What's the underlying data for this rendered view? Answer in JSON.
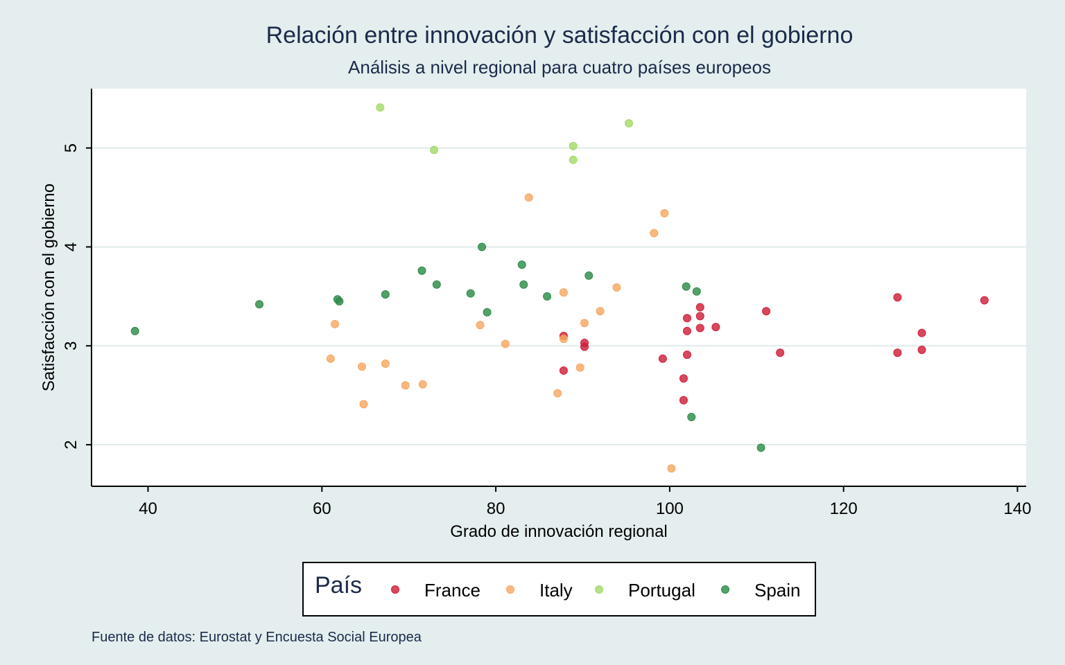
{
  "chart_data": {
    "type": "scatter",
    "title": "Relación entre innovación y satisfacción con el gobierno",
    "subtitle": "Análisis a nivel regional para cuatro países europeos",
    "xlabel": "Grado de innovación regional",
    "ylabel": "Satisfacción con el gobierno",
    "xlim": [
      33.5,
      141
    ],
    "ylim": [
      1.58,
      5.6
    ],
    "xticks": [
      40,
      60,
      80,
      100,
      120,
      140
    ],
    "yticks": [
      2,
      3,
      4,
      5
    ],
    "grid": "horizontal",
    "legend": {
      "title": "País",
      "placement": "bottom-center"
    },
    "note": "Fuente de datos: Eurostat y Encuesta Social Europea",
    "series": [
      {
        "name": "France",
        "color": "#d0203a",
        "points": [
          [
            87.8,
            3.1
          ],
          [
            87.8,
            2.75
          ],
          [
            90.2,
            3.03
          ],
          [
            90.2,
            2.99
          ],
          [
            99.2,
            2.87
          ],
          [
            101.6,
            2.67
          ],
          [
            101.6,
            2.45
          ],
          [
            102.0,
            3.28
          ],
          [
            102.0,
            3.15
          ],
          [
            102.0,
            2.91
          ],
          [
            103.5,
            3.39
          ],
          [
            103.5,
            3.3
          ],
          [
            103.5,
            3.18
          ],
          [
            105.3,
            3.19
          ],
          [
            111.1,
            3.35
          ],
          [
            112.7,
            2.93
          ],
          [
            126.2,
            3.49
          ],
          [
            126.2,
            2.93
          ],
          [
            129.0,
            3.13
          ],
          [
            129.0,
            2.96
          ],
          [
            136.2,
            3.46
          ]
        ]
      },
      {
        "name": "Italy",
        "color": "#f7a863",
        "points": [
          [
            61.0,
            2.87
          ],
          [
            61.5,
            3.22
          ],
          [
            64.6,
            2.79
          ],
          [
            64.8,
            2.41
          ],
          [
            67.3,
            2.82
          ],
          [
            69.6,
            2.6
          ],
          [
            71.6,
            2.61
          ],
          [
            78.2,
            3.21
          ],
          [
            81.1,
            3.02
          ],
          [
            83.8,
            4.5
          ],
          [
            87.1,
            2.52
          ],
          [
            87.8,
            3.54
          ],
          [
            87.8,
            3.07
          ],
          [
            89.7,
            2.78
          ],
          [
            90.2,
            3.23
          ],
          [
            92.0,
            3.35
          ],
          [
            93.9,
            3.59
          ],
          [
            98.2,
            4.14
          ],
          [
            99.4,
            4.34
          ],
          [
            100.2,
            1.76
          ]
        ]
      },
      {
        "name": "Portugal",
        "color": "#a6d96a",
        "points": [
          [
            66.7,
            5.41
          ],
          [
            72.9,
            4.98
          ],
          [
            88.9,
            5.02
          ],
          [
            88.9,
            4.88
          ],
          [
            95.3,
            5.25
          ]
        ]
      },
      {
        "name": "Spain",
        "color": "#2e8b4a",
        "points": [
          [
            38.5,
            3.15
          ],
          [
            52.8,
            3.42
          ],
          [
            61.8,
            3.47
          ],
          [
            62.0,
            3.45
          ],
          [
            67.3,
            3.52
          ],
          [
            71.5,
            3.76
          ],
          [
            73.2,
            3.62
          ],
          [
            77.1,
            3.53
          ],
          [
            78.4,
            4.0
          ],
          [
            79.0,
            3.34
          ],
          [
            83.0,
            3.82
          ],
          [
            83.2,
            3.62
          ],
          [
            85.9,
            3.5
          ],
          [
            90.7,
            3.71
          ],
          [
            101.9,
            3.6
          ],
          [
            102.5,
            2.28
          ],
          [
            103.1,
            3.55
          ],
          [
            110.5,
            1.97
          ]
        ]
      }
    ]
  }
}
